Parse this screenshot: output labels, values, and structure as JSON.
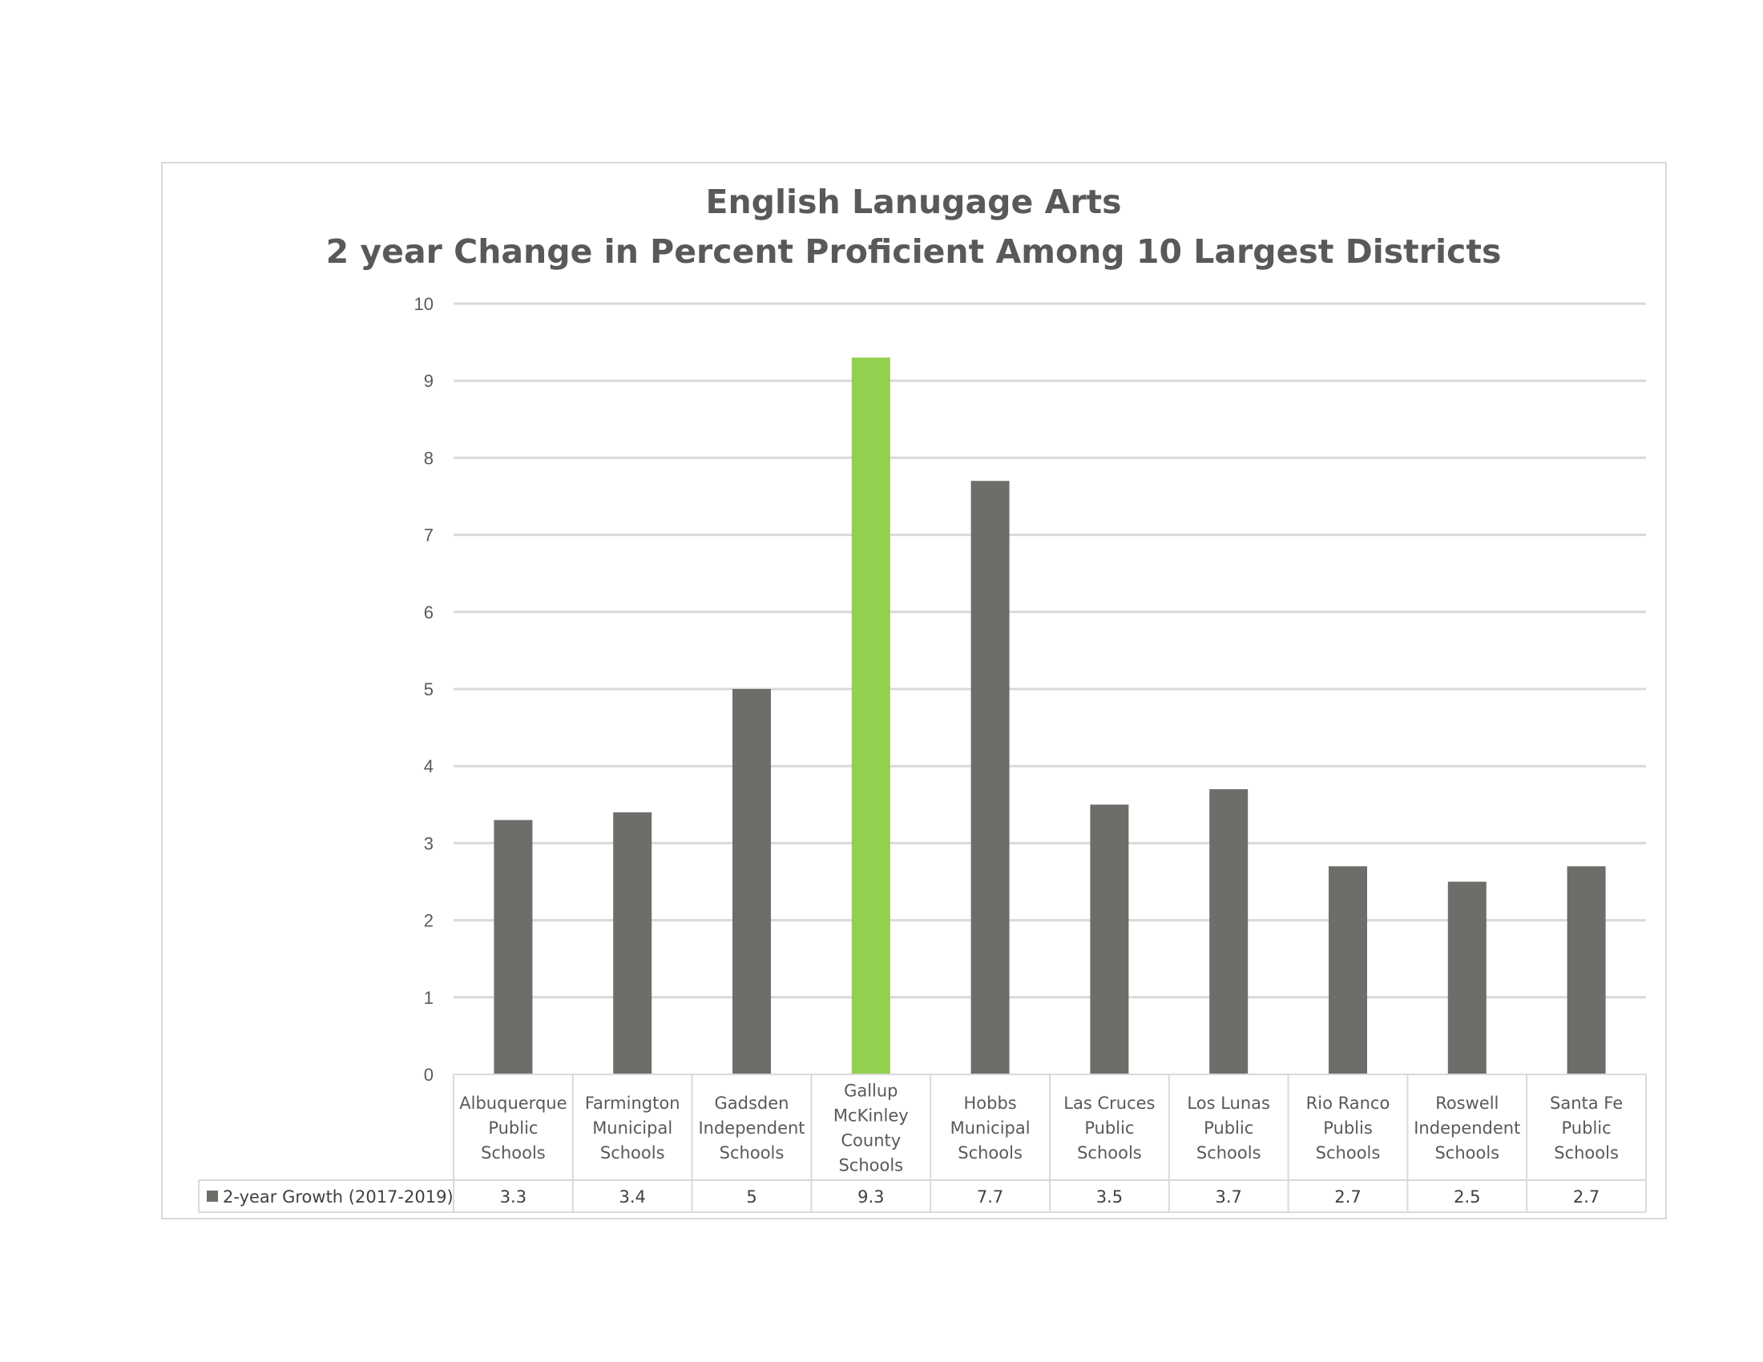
{
  "chart_data": {
    "type": "bar",
    "title_lines": [
      "English Lanugage Arts",
      "2 year Change in Percent Proficient Among 10 Largest Districts"
    ],
    "categories": [
      [
        "Albuquerque",
        "Public",
        "Schools"
      ],
      [
        "Farmington",
        "Municipal",
        "Schools"
      ],
      [
        "Gadsden",
        "Independent",
        "Schools"
      ],
      [
        "Gallup",
        "McKinley",
        "County",
        "Schools"
      ],
      [
        "Hobbs",
        "Municipal",
        "Schools"
      ],
      [
        "Las Cruces",
        "Public",
        "Schools"
      ],
      [
        "Los Lunas",
        "Public",
        "Schools"
      ],
      [
        "Rio Ranco",
        "Publis",
        "Schools"
      ],
      [
        "Roswell",
        "Independent",
        "Schools"
      ],
      [
        "Santa Fe",
        "Public",
        "Schools"
      ]
    ],
    "series": [
      {
        "name": "2-year Growth (2017-2019)",
        "values": [
          3.3,
          3.4,
          5,
          9.3,
          7.7,
          3.5,
          3.7,
          2.7,
          2.5,
          2.7
        ],
        "value_labels": [
          "3.3",
          "3.4",
          "5",
          "9.3",
          "7.7",
          "3.5",
          "3.7",
          "2.7",
          "2.5",
          "2.7"
        ]
      }
    ],
    "ylim": [
      0,
      10
    ],
    "yticks": [
      0,
      1,
      2,
      3,
      4,
      5,
      6,
      7,
      8,
      9,
      10
    ],
    "grid": true,
    "legend": "data-table",
    "colors": {
      "bar": "#6f6d69",
      "highlight": "#92d050",
      "grid": "#d9d9d9",
      "text": "#595959"
    },
    "highlight_index": 3
  }
}
